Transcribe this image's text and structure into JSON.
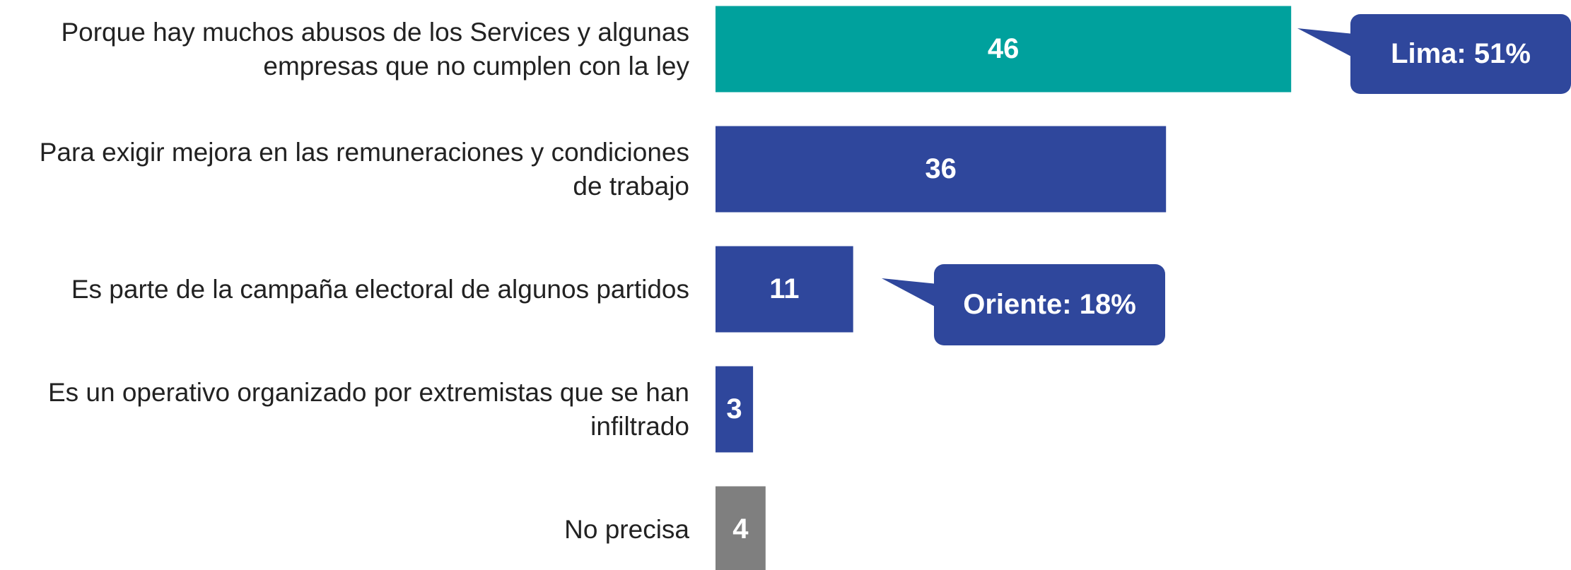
{
  "chart_data": {
    "type": "bar",
    "orientation": "horizontal",
    "categories": [
      "Porque hay muchos abusos de los Services y algunas empresas que no cumplen con la ley",
      "Para exigir mejora en las remuneraciones y condiciones de trabajo",
      "Es parte de la campaña electoral de algunos partidos",
      "Es un operativo organizado por extremistas que se han infiltrado",
      "No precisa"
    ],
    "values": [
      46,
      36,
      11,
      3,
      4
    ],
    "colors": [
      "#00a19d",
      "#2f479c",
      "#2f479c",
      "#2f479c",
      "#7f7f7f"
    ],
    "annotations": [
      {
        "text": "Lima: 51%",
        "category": 0,
        "color": "#2f479c"
      },
      {
        "text": "Oriente: 18%",
        "category": 2,
        "color": "#2f479c"
      }
    ]
  }
}
